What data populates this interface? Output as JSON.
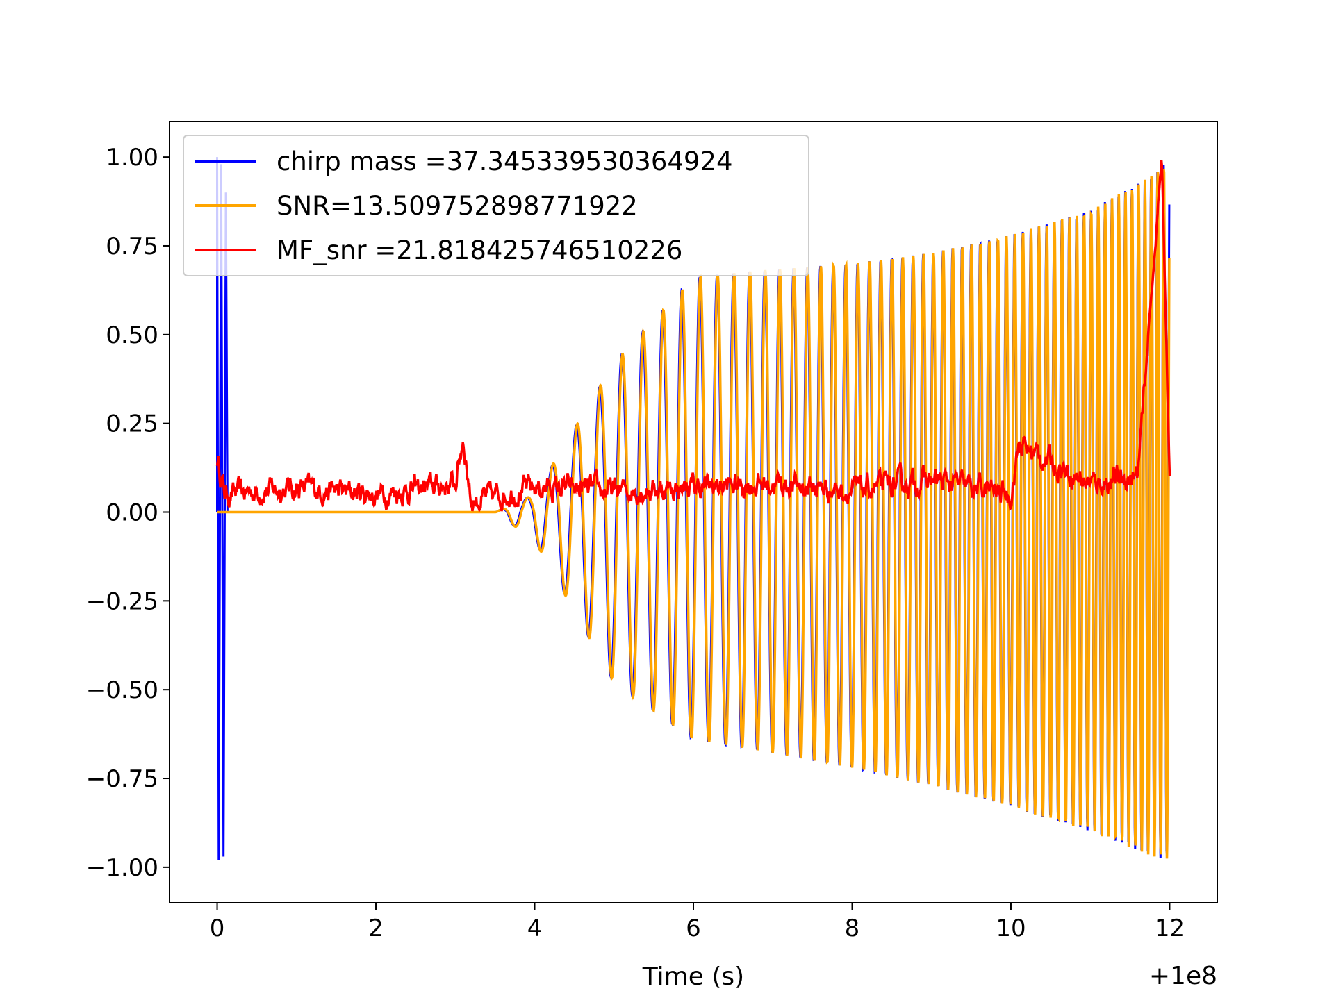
{
  "chart_data": {
    "type": "line",
    "xlabel": "Time (s)",
    "ylabel": "",
    "x_offset_label": "+1e8",
    "xlim": [
      -0.6,
      12.6
    ],
    "ylim": [
      -1.1,
      1.1
    ],
    "x_ticks": [
      0,
      2,
      4,
      6,
      8,
      10,
      12
    ],
    "x_tick_labels": [
      "0",
      "2",
      "4",
      "6",
      "8",
      "10",
      "12"
    ],
    "y_ticks": [
      1.0,
      0.75,
      0.5,
      0.25,
      0.0,
      -0.25,
      -0.5,
      -0.75,
      -1.0
    ],
    "y_tick_labels": [
      "1.00",
      "0.75",
      "0.50",
      "0.25",
      "0.00",
      "−0.25",
      "−0.50",
      "−0.75",
      "−1.00"
    ],
    "grid": false,
    "legend_position": "upper-left",
    "series": [
      {
        "name": "chirp mass =37.345339530364924",
        "color": "#0000ff",
        "description_points": {
          "x": [
            0.0,
            0.12,
            3.5,
            4.0,
            5.0,
            6.0,
            6.8,
            8.0,
            9.0,
            10.0,
            11.0,
            11.8,
            12.0
          ],
          "upper_envelope": [
            1.0,
            0.98,
            0.0,
            0.05,
            0.42,
            0.66,
            0.68,
            0.7,
            0.73,
            0.78,
            0.85,
            0.95,
            1.0
          ],
          "lower_envelope": [
            -0.98,
            -0.98,
            0.0,
            -0.08,
            -0.48,
            -0.64,
            -0.67,
            -0.72,
            -0.77,
            -0.83,
            -0.9,
            -0.97,
            -0.98
          ]
        }
      },
      {
        "name": "SNR=13.509752898771922",
        "color": "#ffa500",
        "description_points": {
          "x": [
            0.0,
            3.5,
            4.0,
            5.0,
            6.0,
            6.8,
            8.0,
            9.0,
            10.0,
            11.0,
            11.8,
            12.0
          ],
          "upper_envelope": [
            0.0,
            0.0,
            0.05,
            0.42,
            0.66,
            0.68,
            0.7,
            0.73,
            0.78,
            0.85,
            0.95,
            1.0
          ],
          "lower_envelope": [
            0.0,
            0.0,
            -0.08,
            -0.48,
            -0.64,
            -0.67,
            -0.72,
            -0.77,
            -0.83,
            -0.9,
            -0.97,
            -0.98
          ]
        }
      },
      {
        "name": "MF_snr =21.818425746510226",
        "color": "#ff0000",
        "description_points": {
          "x": [
            0.0,
            0.1,
            1.0,
            2.0,
            3.0,
            3.1,
            3.2,
            4.0,
            5.0,
            6.0,
            7.0,
            8.0,
            9.0,
            10.0,
            10.1,
            11.0,
            11.6,
            11.9,
            12.0
          ],
          "y": [
            0.15,
            0.05,
            0.07,
            0.05,
            0.08,
            0.21,
            0.03,
            0.07,
            0.06,
            0.07,
            0.08,
            0.06,
            0.09,
            0.05,
            0.19,
            0.08,
            0.1,
            1.0,
            0.11
          ]
        }
      }
    ]
  }
}
